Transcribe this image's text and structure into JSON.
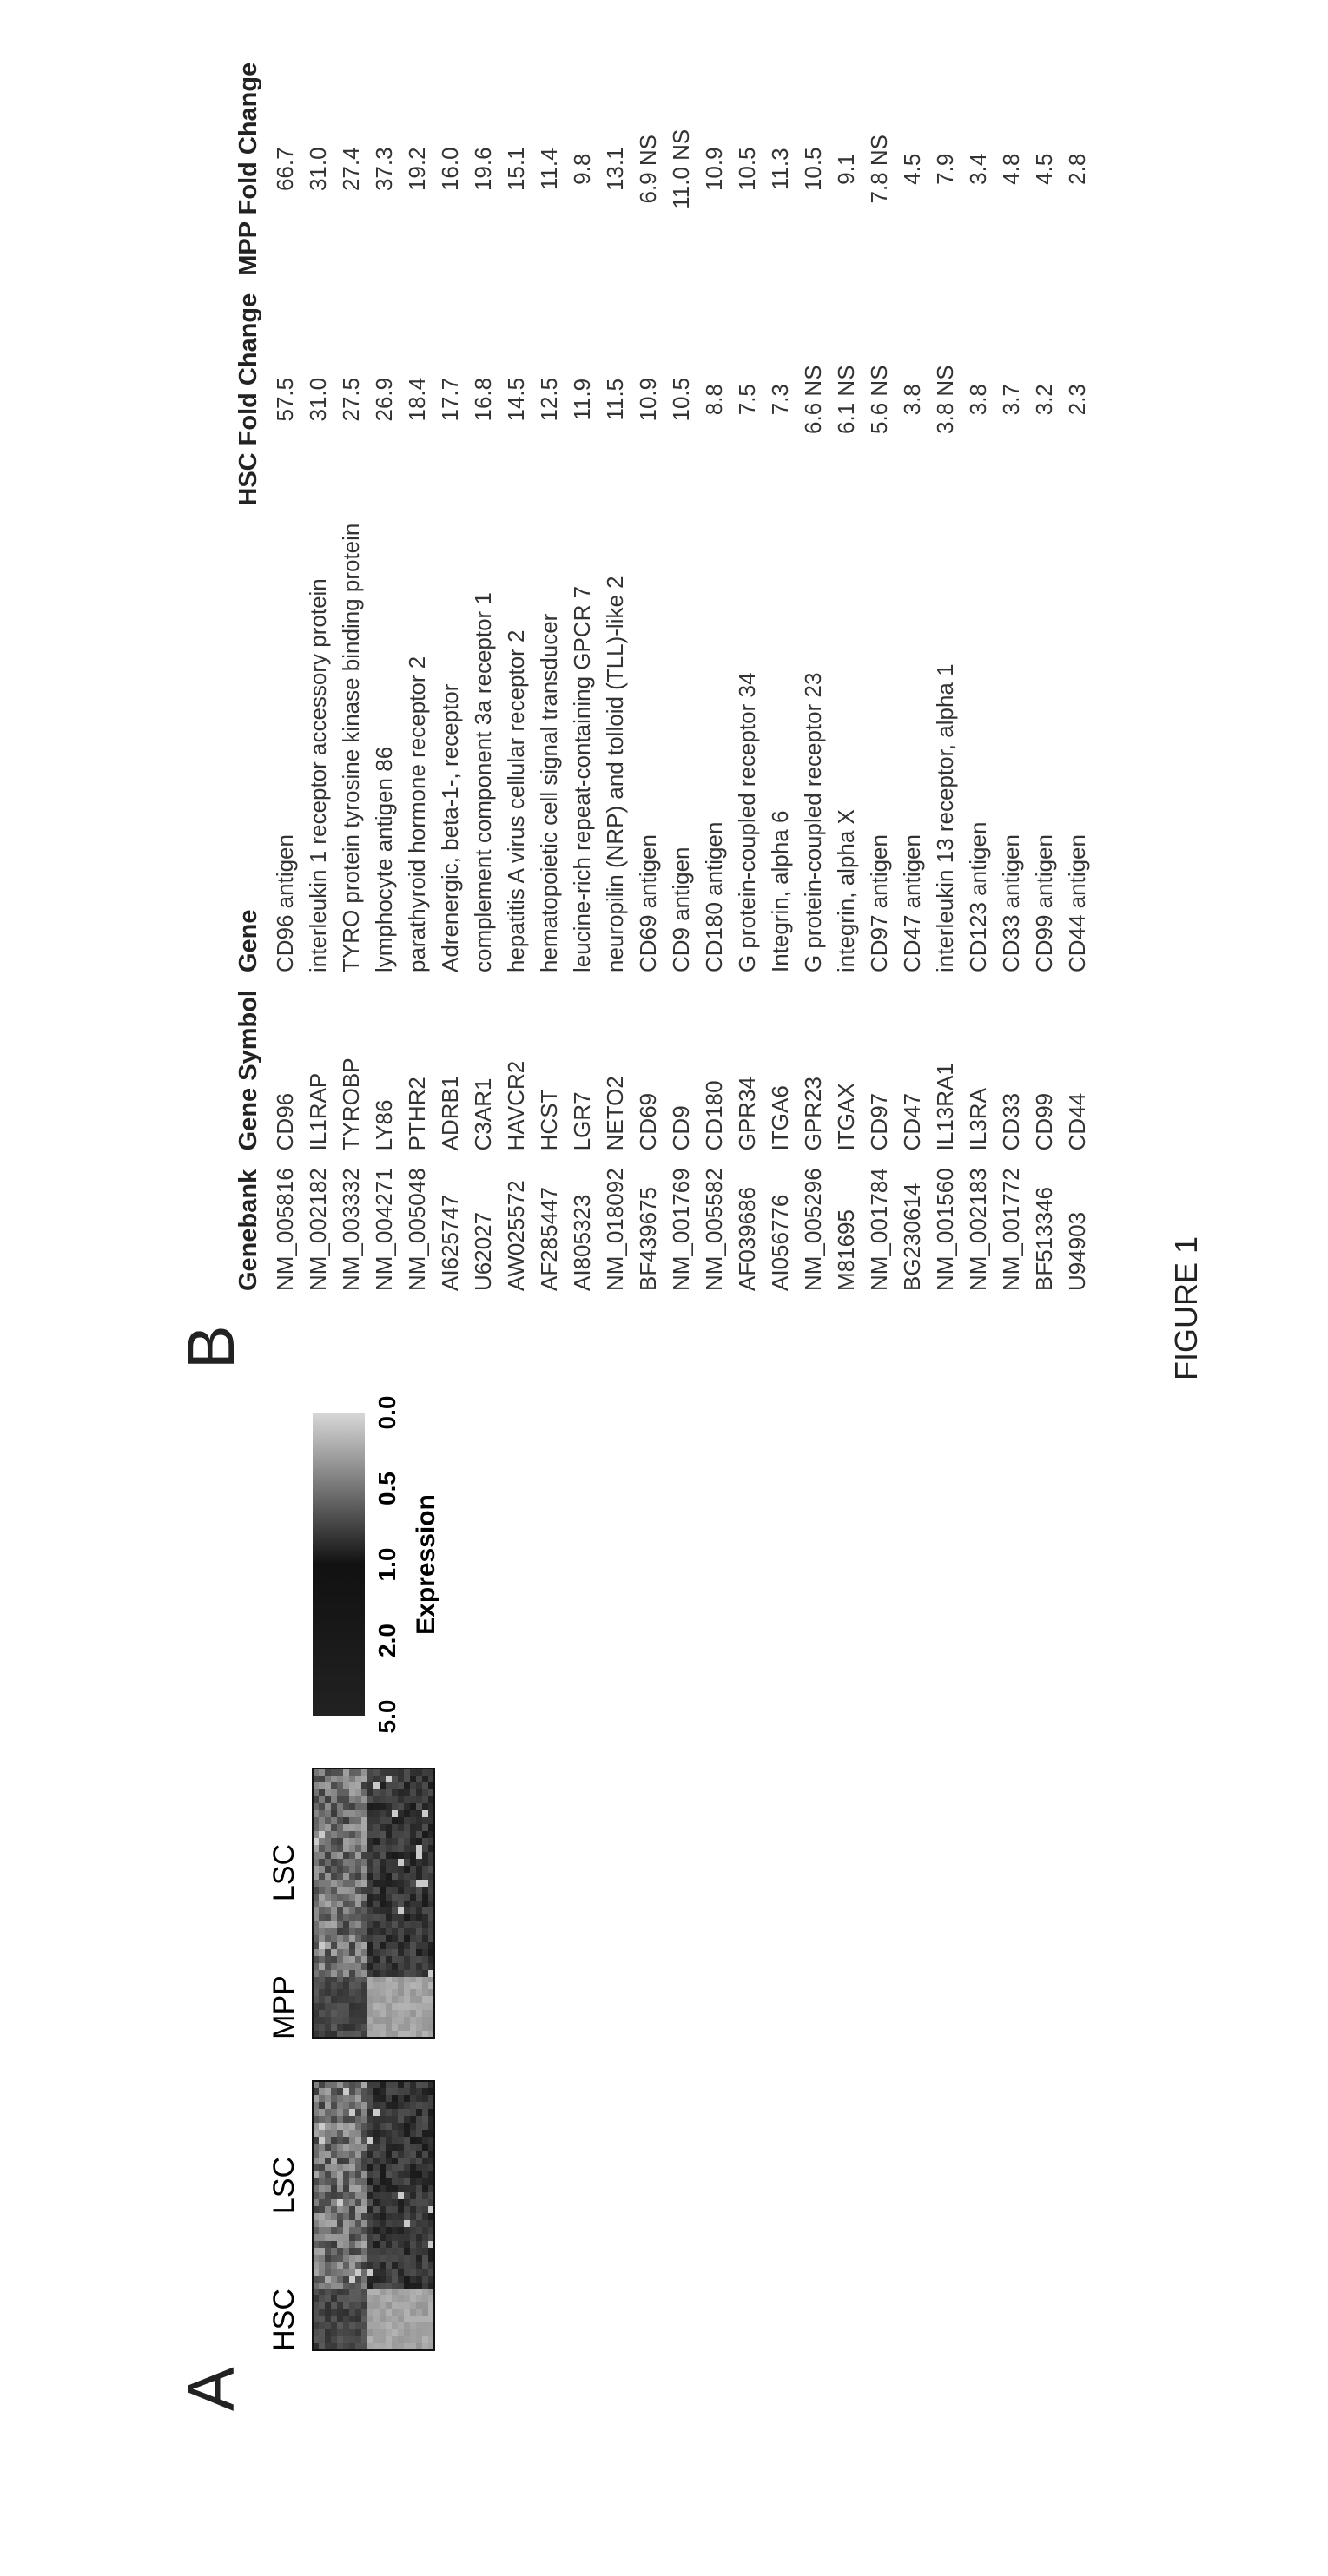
{
  "panel_a": {
    "label": "A",
    "heatmaps": [
      {
        "columns": [
          "HSC",
          "LSC"
        ]
      },
      {
        "columns": [
          "MPP",
          "LSC"
        ]
      }
    ],
    "colorbar": {
      "title": "Expression",
      "ticks": [
        "5.0",
        "2.0",
        "1.0",
        "0.5",
        "0.0"
      ]
    }
  },
  "panel_b": {
    "label": "B",
    "table": {
      "header": [
        "Genebank",
        "Gene Symbol",
        "Gene",
        "HSC Fold Change",
        "MPP Fold Change"
      ],
      "rows": [
        [
          "NM_005816",
          "CD96",
          "CD96 antigen",
          "57.5",
          "66.7"
        ],
        [
          "NM_002182",
          "IL1RAP",
          "interleukin 1 receptor accessory protein",
          "31.0",
          "31.0"
        ],
        [
          "NM_003332",
          "TYROBP",
          "TYRO protein tyrosine kinase binding protein",
          "27.5",
          "27.4"
        ],
        [
          "NM_004271",
          "LY86",
          "lymphocyte antigen 86",
          "26.9",
          "37.3"
        ],
        [
          "NM_005048",
          "PTHR2",
          "parathyroid hormone receptor 2",
          "18.4",
          "19.2"
        ],
        [
          "AI625747",
          "ADRB1",
          "Adrenergic, beta-1-, receptor",
          "17.7",
          "16.0"
        ],
        [
          "U62027",
          "C3AR1",
          "complement component 3a receptor 1",
          "16.8",
          "19.6"
        ],
        [
          "AW025572",
          "HAVCR2",
          "hepatitis A virus cellular receptor 2",
          "14.5",
          "15.1"
        ],
        [
          "AF285447",
          "HCST",
          "hematopoietic cell signal transducer",
          "12.5",
          "11.4"
        ],
        [
          "AI805323",
          "LGR7",
          "leucine-rich repeat-containing GPCR 7",
          "11.9",
          "9.8"
        ],
        [
          "NM_018092",
          "NETO2",
          "neuropilin (NRP) and tolloid (TLL)-like 2",
          "11.5",
          "13.1"
        ],
        [
          "BF439675",
          "CD69",
          "CD69 antigen",
          "10.9",
          "6.9 NS"
        ],
        [
          "NM_001769",
          "CD9",
          "CD9 antigen",
          "10.5",
          "11.0 NS"
        ],
        [
          "NM_005582",
          "CD180",
          "CD180 antigen",
          "8.8",
          "10.9"
        ],
        [
          "AF039686",
          "GPR34",
          "G protein-coupled receptor 34",
          "7.5",
          "10.5"
        ],
        [
          "AI056776",
          "ITGA6",
          "Integrin, alpha 6",
          "7.3",
          "11.3"
        ],
        [
          "NM_005296",
          "GPR23",
          "G protein-coupled receptor 23",
          "6.6 NS",
          "10.5"
        ],
        [
          "M81695",
          "ITGAX",
          "integrin, alpha X",
          "6.1 NS",
          "9.1"
        ],
        [
          "NM_001784",
          "CD97",
          "CD97 antigen",
          "5.6 NS",
          "7.8 NS"
        ],
        [
          "BG230614",
          "CD47",
          "CD47 antigen",
          "3.8",
          "4.5"
        ],
        [
          "NM_001560",
          "IL13RA1",
          "interleukin 13 receptor, alpha 1",
          "3.8 NS",
          "7.9"
        ],
        [
          "NM_002183",
          "IL3RA",
          "CD123 antigen",
          "3.8",
          "3.4"
        ],
        [
          "NM_001772",
          "CD33",
          "CD33 antigen",
          "3.7",
          "4.8"
        ],
        [
          "BF513346",
          "CD99",
          "CD99 antigen",
          "3.2",
          "4.5"
        ],
        [
          "U94903",
          "CD44",
          "CD44 antigen",
          "2.3",
          "2.8"
        ]
      ]
    }
  },
  "caption": "FIGURE 1"
}
